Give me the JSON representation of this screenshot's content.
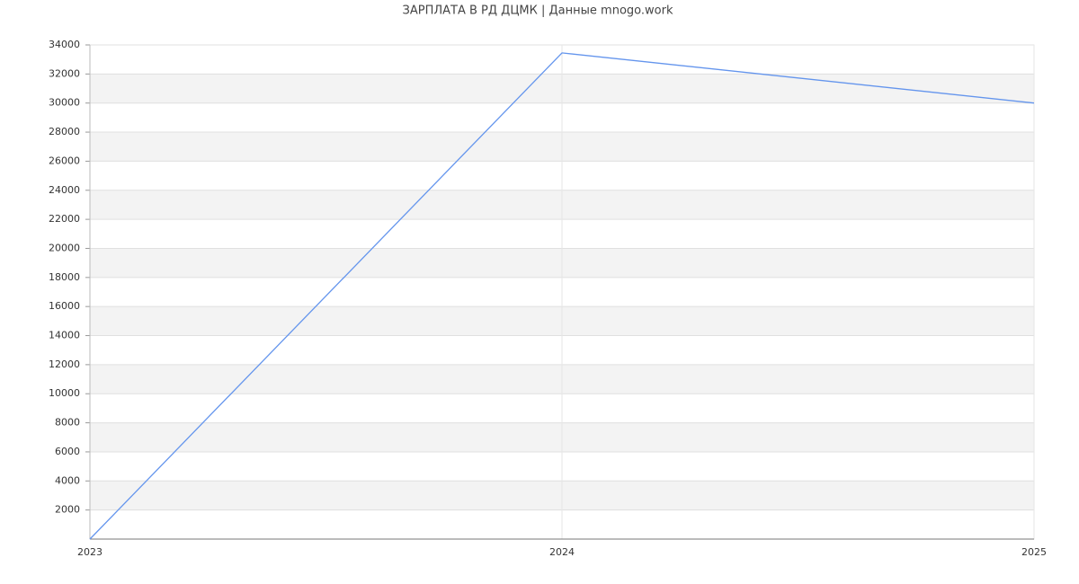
{
  "chart_data": {
    "type": "line",
    "title": "ЗАРПЛАТА В РД ДЦМК | Данные mnogo.work",
    "x": [
      2023,
      2024,
      2025
    ],
    "series": [
      {
        "color": "#6495ed",
        "values": [
          0,
          33450,
          30000
        ]
      }
    ],
    "xlim": [
      2023,
      2025
    ],
    "xticks": [
      2023,
      2024,
      2025
    ],
    "ylim": [
      0,
      34000
    ],
    "yticks": [
      2000,
      4000,
      6000,
      8000,
      10000,
      12000,
      14000,
      16000,
      18000,
      20000,
      22000,
      24000,
      26000,
      28000,
      30000,
      32000,
      34000
    ],
    "grid": true
  }
}
